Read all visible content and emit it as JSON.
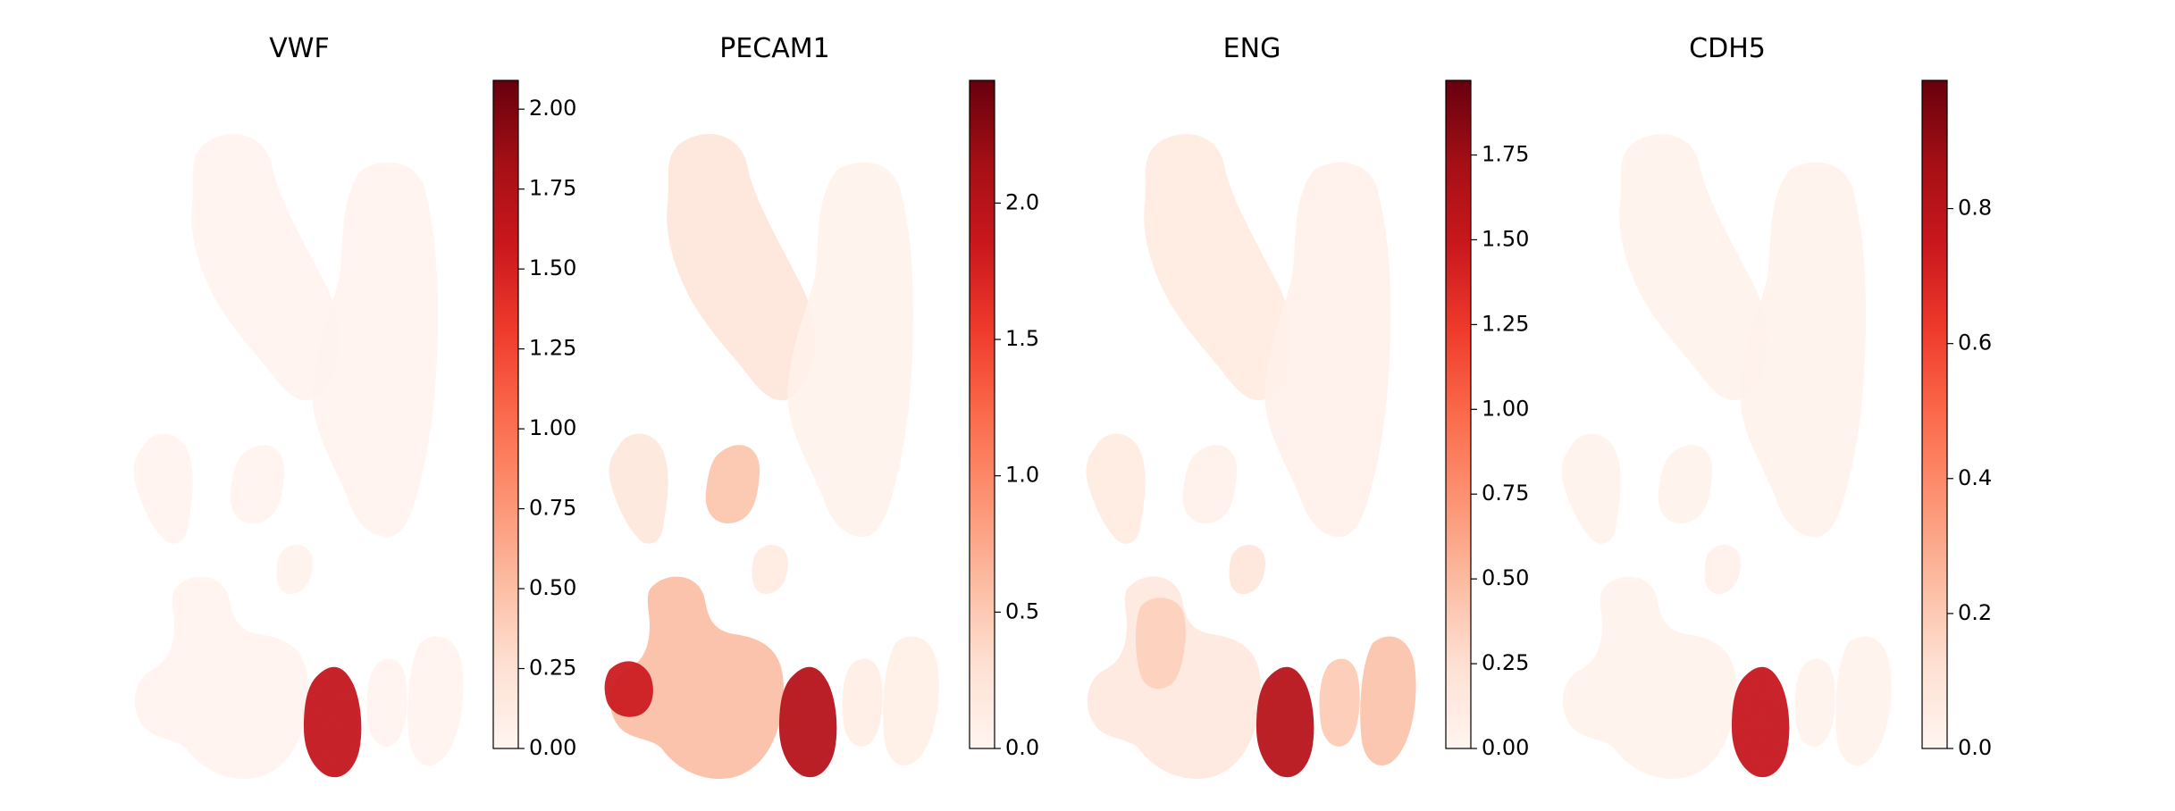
{
  "colors": {
    "cmap": "Reds",
    "low": "#fff5f0",
    "mid": "#fb6a4a",
    "high": "#67000d",
    "background": "#ffffff"
  },
  "chart_data": [
    {
      "type": "scatter",
      "subtype": "umap-feature-plot",
      "title": "VWF",
      "xlabel": "",
      "ylabel": "",
      "colorbar": {
        "vmin": 0.0,
        "vmax": 2.09,
        "ticks": [
          0.0,
          0.25,
          0.5,
          0.75,
          1.0,
          1.25,
          1.5,
          1.75,
          2.0
        ],
        "tick_labels": [
          "0.00",
          "0.25",
          "0.50",
          "0.75",
          "1.00",
          "1.25",
          "1.50",
          "1.75",
          "2.00"
        ]
      },
      "cluster_expression": {
        "top-left": 0.02,
        "top-right": 0.02,
        "mid-left": 0.02,
        "mid-center": 0.02,
        "small-center": 0.04,
        "bottom-left": 0.03,
        "endothelial": 1.6,
        "bottom-right-a": 0.03,
        "bottom-right-b": 0.03
      },
      "grid": false
    },
    {
      "type": "scatter",
      "subtype": "umap-feature-plot",
      "title": "PECAM1",
      "xlabel": "",
      "ylabel": "",
      "colorbar": {
        "vmin": 0.0,
        "vmax": 2.45,
        "ticks": [
          0.0,
          0.5,
          1.0,
          1.5,
          2.0
        ],
        "tick_labels": [
          "0.0",
          "0.5",
          "1.0",
          "1.5",
          "2.0"
        ]
      },
      "cluster_expression": {
        "top-left": 0.25,
        "top-right": 0.05,
        "mid-left": 0.2,
        "mid-center": 0.55,
        "small-center": 0.15,
        "bottom-left": 0.6,
        "bottom-left-tip": 1.8,
        "endothelial": 2.0,
        "bottom-right-a": 0.12,
        "bottom-right-b": 0.1
      },
      "grid": false
    },
    {
      "type": "scatter",
      "subtype": "umap-feature-plot",
      "title": "ENG",
      "xlabel": "",
      "ylabel": "",
      "colorbar": {
        "vmin": 0.0,
        "vmax": 1.97,
        "ticks": [
          0.0,
          0.25,
          0.5,
          0.75,
          1.0,
          1.25,
          1.5,
          1.75
        ],
        "tick_labels": [
          "0.00",
          "0.25",
          "0.50",
          "0.75",
          "1.00",
          "1.25",
          "1.50",
          "1.75"
        ]
      },
      "cluster_expression": {
        "top-left": 0.12,
        "top-right": 0.05,
        "mid-left": 0.12,
        "mid-center": 0.06,
        "small-center": 0.2,
        "bottom-left": 0.15,
        "bottom-left-stem": 0.35,
        "endothelial": 1.6,
        "bottom-right-a": 0.4,
        "bottom-right-b": 0.45
      },
      "grid": false
    },
    {
      "type": "scatter",
      "subtype": "umap-feature-plot",
      "title": "CDH5",
      "xlabel": "",
      "ylabel": "",
      "colorbar": {
        "vmin": 0.0,
        "vmax": 0.99,
        "ticks": [
          0.0,
          0.2,
          0.4,
          0.6,
          0.8
        ],
        "tick_labels": [
          "0.0",
          "0.2",
          "0.4",
          "0.6",
          "0.8"
        ]
      },
      "cluster_expression": {
        "top-left": 0.02,
        "top-right": 0.02,
        "mid-left": 0.02,
        "mid-center": 0.02,
        "small-center": 0.03,
        "bottom-left": 0.02,
        "endothelial": 0.75,
        "bottom-right-a": 0.02,
        "bottom-right-b": 0.02
      },
      "grid": false
    }
  ]
}
